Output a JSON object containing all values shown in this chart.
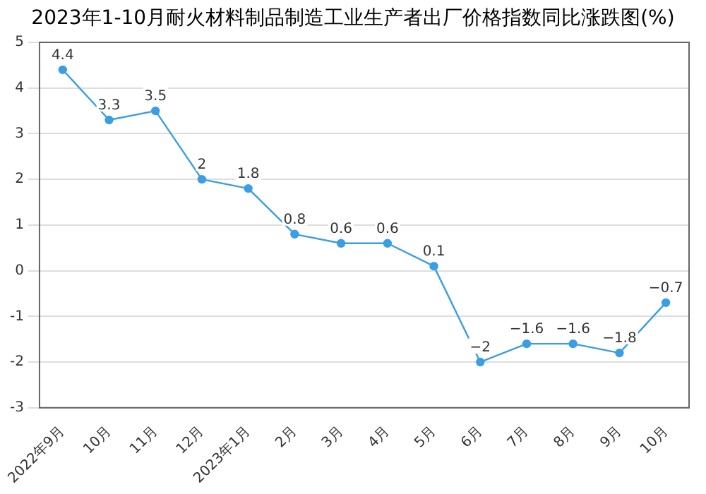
{
  "chart_data": {
    "type": "line",
    "title": "2023年1-10月耐火材料制品制造工业生产者出厂价格指数同比涨跌图(%)",
    "categories": [
      "2022年9月",
      "10月",
      "11月",
      "12月",
      "2023年1月",
      "2月",
      "3月",
      "4月",
      "5月",
      "6月",
      "7月",
      "8月",
      "9月",
      "10月"
    ],
    "values": [
      4.4,
      3.3,
      3.5,
      2,
      1.8,
      0.8,
      0.6,
      0.6,
      0.1,
      -2,
      -1.6,
      -1.6,
      -1.8,
      -0.7
    ],
    "color": "#3a9ee4",
    "ylim": [
      -3,
      5
    ],
    "yticks": [
      -3,
      -2,
      -1,
      0,
      1,
      2,
      3,
      4,
      5
    ],
    "grid": "y",
    "marker": "circle",
    "line_style": "solid",
    "data_labels": true,
    "legend": false
  }
}
